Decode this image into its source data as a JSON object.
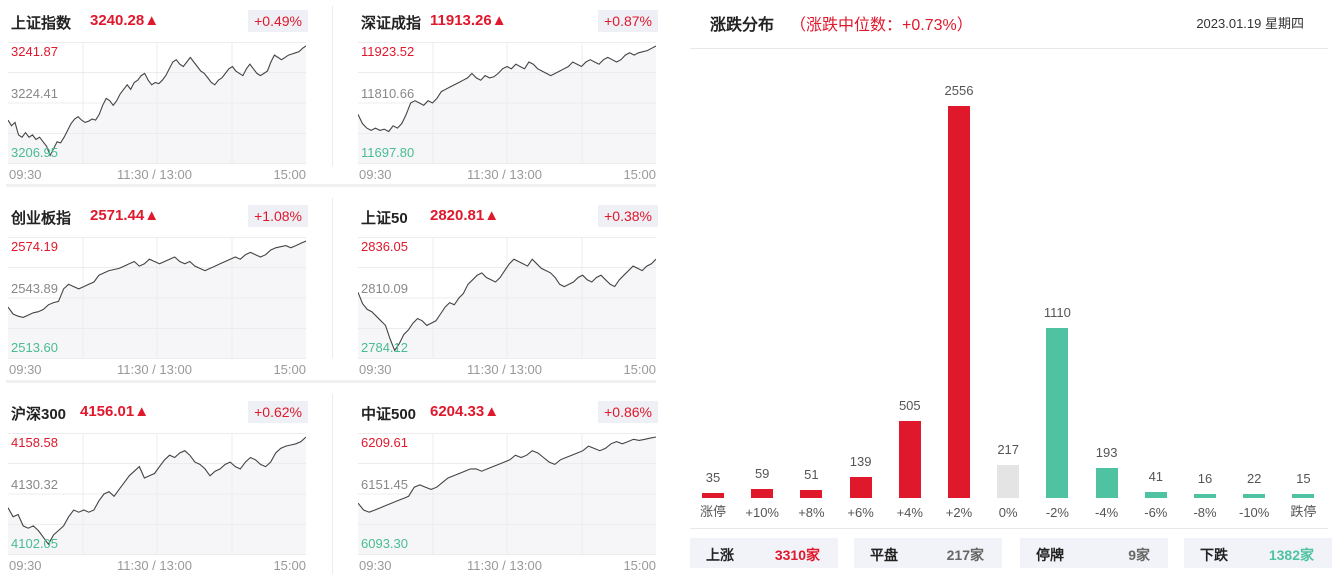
{
  "colors": {
    "up": "#e0182c",
    "down": "#4fc3a1",
    "flat": "#e4e4e4",
    "mid_text": "#888888"
  },
  "indices": [
    {
      "name": "上证指数",
      "price": "3240.28▲",
      "change_pct": "+0.49%",
      "high": "3241.87",
      "mid": "3224.41",
      "low": "3206.95",
      "times": [
        "09:30",
        "11:30 / 13:00",
        "15:00"
      ],
      "series": [
        0.35,
        0.3,
        0.33,
        0.22,
        0.2,
        0.24,
        0.2,
        0.22,
        0.18,
        0.2,
        0.16,
        0.12,
        0.04,
        0.1,
        0.16,
        0.15,
        0.2,
        0.26,
        0.32,
        0.36,
        0.38,
        0.35,
        0.33,
        0.34,
        0.36,
        0.35,
        0.4,
        0.48,
        0.54,
        0.52,
        0.48,
        0.52,
        0.58,
        0.62,
        0.66,
        0.62,
        0.68,
        0.7,
        0.74,
        0.76,
        0.7,
        0.66,
        0.68,
        0.67,
        0.7,
        0.74,
        0.8,
        0.86,
        0.88,
        0.84,
        0.82,
        0.86,
        0.9,
        0.86,
        0.82,
        0.78,
        0.76,
        0.72,
        0.68,
        0.66,
        0.7,
        0.72,
        0.76,
        0.8,
        0.82,
        0.78,
        0.76,
        0.74,
        0.8,
        0.84,
        0.8,
        0.76,
        0.74,
        0.76,
        0.78,
        0.86,
        0.92,
        0.9,
        0.88,
        0.9,
        0.92,
        0.93,
        0.94,
        0.95,
        0.98,
        1.0
      ]
    },
    {
      "name": "深证成指",
      "price": "11913.26▲",
      "change_pct": "+0.87%",
      "high": "11923.52",
      "mid": "11810.66",
      "low": "11697.80",
      "times": [
        "09:30",
        "11:30 / 13:00",
        "15:00"
      ],
      "series": [
        0.4,
        0.32,
        0.28,
        0.26,
        0.28,
        0.26,
        0.27,
        0.25,
        0.3,
        0.28,
        0.32,
        0.4,
        0.5,
        0.52,
        0.5,
        0.48,
        0.52,
        0.5,
        0.54,
        0.6,
        0.62,
        0.64,
        0.66,
        0.68,
        0.7,
        0.72,
        0.76,
        0.72,
        0.7,
        0.74,
        0.72,
        0.73,
        0.76,
        0.8,
        0.82,
        0.8,
        0.84,
        0.82,
        0.8,
        0.86,
        0.84,
        0.8,
        0.78,
        0.76,
        0.74,
        0.76,
        0.78,
        0.8,
        0.82,
        0.86,
        0.84,
        0.82,
        0.86,
        0.88,
        0.86,
        0.84,
        0.88,
        0.9,
        0.88,
        0.86,
        0.88,
        0.92,
        0.94,
        0.92,
        0.94,
        0.95,
        0.96,
        0.98,
        1.0
      ]
    },
    {
      "name": "创业板指",
      "price": "2571.44▲",
      "change_pct": "+1.08%",
      "high": "2574.19",
      "mid": "2543.89",
      "low": "2513.60",
      "times": [
        "09:30",
        "11:30 / 13:00",
        "15:00"
      ],
      "series": [
        0.42,
        0.36,
        0.34,
        0.33,
        0.35,
        0.37,
        0.38,
        0.4,
        0.44,
        0.46,
        0.47,
        0.58,
        0.62,
        0.6,
        0.58,
        0.6,
        0.62,
        0.64,
        0.7,
        0.72,
        0.74,
        0.75,
        0.76,
        0.78,
        0.8,
        0.82,
        0.78,
        0.8,
        0.84,
        0.82,
        0.8,
        0.82,
        0.84,
        0.86,
        0.82,
        0.8,
        0.82,
        0.78,
        0.76,
        0.74,
        0.76,
        0.78,
        0.8,
        0.82,
        0.84,
        0.86,
        0.84,
        0.88,
        0.9,
        0.88,
        0.86,
        0.88,
        0.92,
        0.94,
        0.95,
        0.96,
        0.94,
        0.96,
        0.98,
        1.0
      ]
    },
    {
      "name": "上证50",
      "price": "2820.81▲",
      "change_pct": "+0.38%",
      "high": "2836.05",
      "mid": "2810.09",
      "low": "2784.12",
      "times": [
        "09:30",
        "11:30 / 13:00",
        "15:00"
      ],
      "series": [
        0.55,
        0.45,
        0.4,
        0.38,
        0.34,
        0.3,
        0.26,
        0.14,
        0.04,
        0.1,
        0.18,
        0.22,
        0.28,
        0.32,
        0.3,
        0.26,
        0.28,
        0.3,
        0.36,
        0.42,
        0.46,
        0.44,
        0.5,
        0.54,
        0.62,
        0.66,
        0.7,
        0.72,
        0.68,
        0.66,
        0.64,
        0.68,
        0.74,
        0.8,
        0.84,
        0.82,
        0.8,
        0.78,
        0.84,
        0.8,
        0.76,
        0.74,
        0.72,
        0.68,
        0.62,
        0.6,
        0.62,
        0.64,
        0.68,
        0.7,
        0.66,
        0.64,
        0.68,
        0.7,
        0.66,
        0.62,
        0.6,
        0.66,
        0.7,
        0.74,
        0.78,
        0.76,
        0.74,
        0.78,
        0.8,
        0.84
      ]
    },
    {
      "name": "沪深300",
      "price": "4156.01▲",
      "change_pct": "+0.62%",
      "high": "4158.58",
      "mid": "4130.32",
      "low": "4102.05",
      "times": [
        "09:30",
        "11:30 / 13:00",
        "15:00"
      ],
      "series": [
        0.38,
        0.3,
        0.32,
        0.22,
        0.2,
        0.22,
        0.18,
        0.12,
        0.06,
        0.14,
        0.18,
        0.22,
        0.3,
        0.36,
        0.34,
        0.36,
        0.34,
        0.36,
        0.44,
        0.5,
        0.52,
        0.48,
        0.54,
        0.6,
        0.66,
        0.7,
        0.74,
        0.64,
        0.66,
        0.68,
        0.74,
        0.8,
        0.84,
        0.82,
        0.86,
        0.88,
        0.84,
        0.78,
        0.76,
        0.72,
        0.66,
        0.7,
        0.72,
        0.76,
        0.78,
        0.74,
        0.72,
        0.78,
        0.82,
        0.8,
        0.76,
        0.74,
        0.78,
        0.86,
        0.9,
        0.92,
        0.93,
        0.94,
        0.96,
        1.0
      ]
    },
    {
      "name": "中证500",
      "price": "6204.33▲",
      "change_pct": "+0.86%",
      "high": "6209.61",
      "mid": "6151.45",
      "low": "6093.30",
      "times": [
        "09:30",
        "11:30 / 13:00",
        "15:00"
      ],
      "series": [
        0.42,
        0.36,
        0.34,
        0.36,
        0.38,
        0.4,
        0.42,
        0.44,
        0.46,
        0.48,
        0.56,
        0.58,
        0.56,
        0.54,
        0.56,
        0.6,
        0.64,
        0.66,
        0.68,
        0.7,
        0.72,
        0.72,
        0.7,
        0.72,
        0.74,
        0.76,
        0.78,
        0.8,
        0.84,
        0.82,
        0.84,
        0.88,
        0.86,
        0.82,
        0.78,
        0.76,
        0.8,
        0.82,
        0.84,
        0.86,
        0.88,
        0.92,
        0.9,
        0.88,
        0.9,
        0.94,
        0.96,
        0.94,
        0.96,
        0.98,
        0.97,
        0.98,
        0.99,
        1.0
      ]
    }
  ],
  "distribution": {
    "title": "涨跌分布",
    "subtitle": "（涨跌中位数：+0.73%）",
    "date": "2023.01.19 星期四"
  },
  "chart_data": {
    "type": "bar",
    "title": "涨跌分布",
    "subtitle": "涨跌中位数：+0.73%",
    "categories": [
      "涨停",
      "+10%",
      "+8%",
      "+6%",
      "+4%",
      "+2%",
      "0%",
      "-2%",
      "-4%",
      "-6%",
      "-8%",
      "-10%",
      "跌停"
    ],
    "values": [
      35,
      59,
      51,
      139,
      505,
      2556,
      217,
      1110,
      193,
      41,
      16,
      22,
      15
    ],
    "colors": [
      "up",
      "up",
      "up",
      "up",
      "up",
      "up",
      "flat",
      "down",
      "down",
      "down",
      "down",
      "down",
      "down"
    ],
    "xlabel": "",
    "ylabel": "",
    "ylim": [
      0,
      2556
    ],
    "grid": false,
    "legend": "none"
  },
  "summary": [
    {
      "label": "上涨",
      "value": "3310家",
      "color": "#e0182c"
    },
    {
      "label": "平盘",
      "value": "217家",
      "color": "#666666"
    },
    {
      "label": "停牌",
      "value": "9家",
      "color": "#666666"
    },
    {
      "label": "下跌",
      "value": "1382家",
      "color": "#4fc3a1"
    }
  ]
}
